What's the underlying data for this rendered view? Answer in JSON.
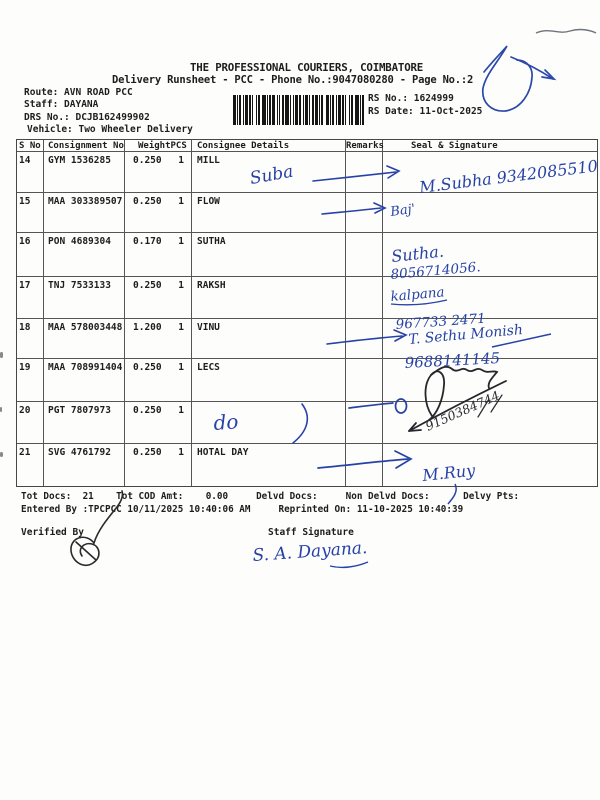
{
  "doc": {
    "title": "THE PROFESSIONAL COURIERS, COIMBATORE",
    "subtitle": "Delivery Runsheet - PCC - Phone No.:9047080280 - Page No.:2",
    "route_line": "Route: AVN ROAD PCC",
    "staff_line": "Staff: DAYANA",
    "drs_line": "DRS No.: DCJB162499902",
    "vehicle_line": "Vehicle: Two Wheeler Delivery",
    "rs_no_line": "RS No.: 1624999",
    "rs_date_line": "RS Date: 11-Oct-2025"
  },
  "table": {
    "headers": {
      "sno": "S No",
      "consignment": "Consignment No",
      "weight": "Weight",
      "pcs": "PCS",
      "consignee": "Consignee Details",
      "remarks": "Remarks",
      "seal": "Seal & Signature"
    },
    "rows": [
      {
        "sno": "14",
        "consignment": "GYM 1536285",
        "weight": "0.250",
        "pcs": "1",
        "consignee": "MILL",
        "remarks": ""
      },
      {
        "sno": "15",
        "consignment": "MAA 303389507",
        "weight": "0.250",
        "pcs": "1",
        "consignee": "FLOW",
        "remarks": ""
      },
      {
        "sno": "16",
        "consignment": "PON 4689304",
        "weight": "0.170",
        "pcs": "1",
        "consignee": "SUTHA",
        "remarks": ""
      },
      {
        "sno": "17",
        "consignment": "TNJ 7533133",
        "weight": "0.250",
        "pcs": "1",
        "consignee": "RAKSH",
        "remarks": ""
      },
      {
        "sno": "18",
        "consignment": "MAA 578003448",
        "weight": "1.200",
        "pcs": "1",
        "consignee": "VINU",
        "remarks": ""
      },
      {
        "sno": "19",
        "consignment": "MAA 708991404",
        "weight": "0.250",
        "pcs": "1",
        "consignee": "LECS",
        "remarks": ""
      },
      {
        "sno": "20",
        "consignment": "PGT 7807973",
        "weight": "0.250",
        "pcs": "1",
        "consignee": "",
        "remarks": ""
      },
      {
        "sno": "21",
        "consignment": "SVG 4761792",
        "weight": "0.250",
        "pcs": "1",
        "consignee": "HOTAL DAY",
        "remarks": ""
      }
    ]
  },
  "footer": {
    "totals_line": "Tot Docs:  21    Tot COD Amt:    0.00     Delvd Docs:     Non Delvd Docs:      Delvy Pts:",
    "entered_line": "Entered By :TPCPCC 10/11/2025 10:40:06 AM     Reprinted On: 11-10-2025 10:40:39",
    "verified_by_label": "Verified By",
    "staff_signature_label": "Staff Signature"
  },
  "handwriting": {
    "ink_blue": "#2742a6",
    "ink_dark": "#26272c",
    "row14_note": "Suba",
    "row14_sign": "M.Subha 9342085510",
    "row15_sign": "Baj'",
    "row16_name": "Sutha.",
    "row16_phone": "8056714056.",
    "row17_name": "kalpana",
    "row17_phone": "967733 2471",
    "row18_name": "T. Sethu Monish",
    "row18_phone": "9688141145",
    "row19_phone": "9150384744",
    "row20_note": "do",
    "row21_sign": "M.Ruy",
    "staff_sign": "S. A. Dayana."
  }
}
